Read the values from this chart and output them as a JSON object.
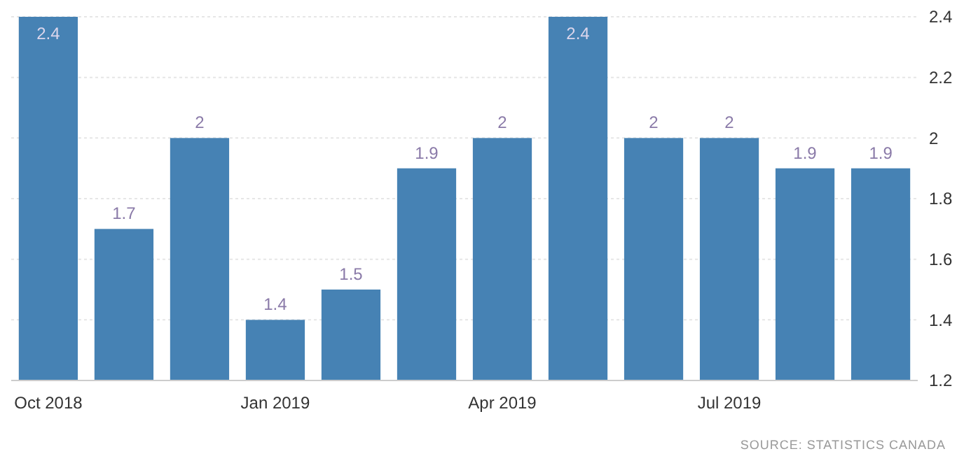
{
  "chart_data": {
    "type": "bar",
    "categories": [
      "Oct 2018",
      null,
      null,
      "Jan 2019",
      null,
      null,
      "Apr 2019",
      null,
      null,
      "Jul 2019",
      null,
      null
    ],
    "values": [
      2.4,
      1.7,
      2,
      1.4,
      1.5,
      1.9,
      2,
      2.4,
      2,
      2,
      1.9,
      1.9
    ],
    "color": "#4682b4",
    "ylim": [
      1.2,
      2.4
    ],
    "yticks": [
      1.2,
      1.4,
      1.6,
      1.8,
      2,
      2.2,
      2.4
    ],
    "grid": "y",
    "data_labels": true,
    "annotations": [
      "SOURCE: STATISTICS CANADA"
    ]
  }
}
